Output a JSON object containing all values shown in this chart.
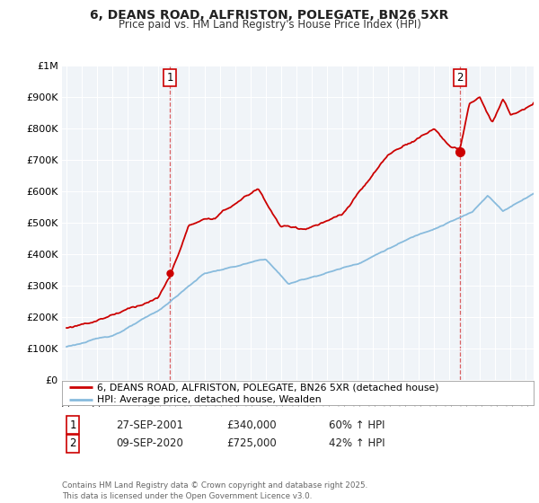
{
  "title": "6, DEANS ROAD, ALFRISTON, POLEGATE, BN26 5XR",
  "subtitle": "Price paid vs. HM Land Registry's House Price Index (HPI)",
  "background_color": "#ffffff",
  "plot_background": "#ffffff",
  "red_color": "#cc0000",
  "blue_color": "#88bbdd",
  "grid_color": "#dddddd",
  "ylim": [
    0,
    1000000
  ],
  "yticks": [
    0,
    100000,
    200000,
    300000,
    400000,
    500000,
    600000,
    700000,
    800000,
    900000,
    1000000
  ],
  "ytick_labels": [
    "£0",
    "£100K",
    "£200K",
    "£300K",
    "£400K",
    "£500K",
    "£600K",
    "£700K",
    "£800K",
    "£900K",
    "£1M"
  ],
  "legend_red": "6, DEANS ROAD, ALFRISTON, POLEGATE, BN26 5XR (detached house)",
  "legend_blue": "HPI: Average price, detached house, Wealden",
  "sale1_label": "1",
  "sale1_date": "27-SEP-2001",
  "sale1_price": "£340,000",
  "sale1_hpi": "60% ↑ HPI",
  "sale1_year": 2001.75,
  "sale1_value": 340000,
  "sale2_label": "2",
  "sale2_date": "09-SEP-2020",
  "sale2_price": "£725,000",
  "sale2_hpi": "42% ↑ HPI",
  "sale2_year": 2020.69,
  "sale2_value": 725000,
  "footer": "Contains HM Land Registry data © Crown copyright and database right 2025.\nThis data is licensed under the Open Government Licence v3.0.",
  "xmin": 1995.0,
  "xmax": 2025.5
}
